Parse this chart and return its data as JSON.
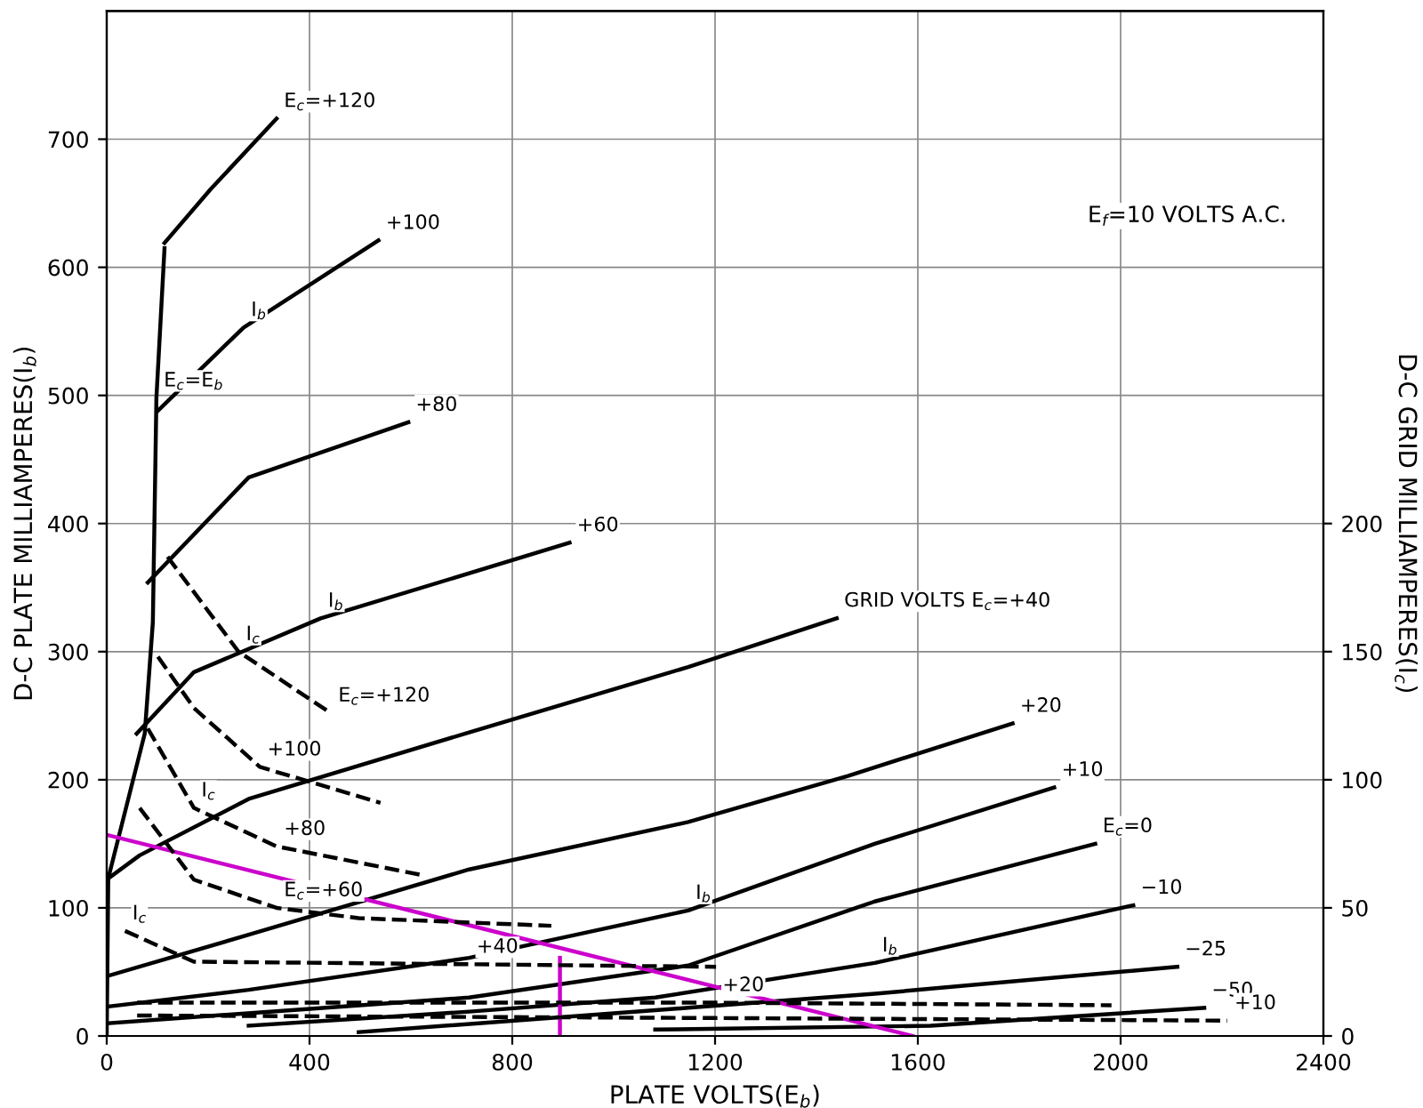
{
  "chart_data": {
    "type": "line",
    "xlabel": "PLATE VOLTS(E$_{b}$)",
    "ylabel": "D-C PLATE MILLIAMPERES(I$_{b}$)",
    "y2label": "D-C GRID MILLIAMPERES(I$_{c}$)",
    "xlim": [
      0,
      2400
    ],
    "xticks": [
      0,
      400,
      800,
      1200,
      1600,
      2000,
      2400
    ],
    "ylim": [
      0,
      800
    ],
    "yticks": [
      0,
      100,
      200,
      300,
      400,
      500,
      600,
      700
    ],
    "y2lim": [
      0,
      400
    ],
    "y2ticks": [
      0,
      50,
      100,
      150,
      200
    ],
    "grid": true,
    "marker": "none",
    "series": [
      {
        "color": "#000000",
        "line_style": "solid",
        "x": [
          0,
          3,
          75,
          91,
          98,
          114
        ],
        "values": [
          0,
          123,
          236,
          323,
          498,
          615
        ]
      },
      {
        "color": "#000000",
        "line_style": "solid",
        "x": [
          114,
          205,
          335
        ],
        "values": [
          619,
          661,
          716
        ]
      },
      {
        "color": "#000000",
        "line_style": "solid",
        "x": [
          101,
          270,
          536
        ],
        "values": [
          488,
          553,
          621
        ]
      },
      {
        "color": "#000000",
        "line_style": "solid",
        "x": [
          81,
          280,
          595
        ],
        "values": [
          354,
          436,
          479
        ]
      },
      {
        "color": "#000000",
        "line_style": "solid",
        "x": [
          59,
          172,
          422,
          913
        ],
        "values": [
          236,
          284,
          326,
          385
        ]
      },
      {
        "color": "#000000",
        "line_style": "solid",
        "x": [
          3,
          65,
          280,
          715,
          1147,
          1440
        ],
        "values": [
          123,
          141,
          185,
          237,
          288,
          326
        ]
      },
      {
        "color": "#000000",
        "line_style": "solid",
        "x": [
          3,
          280,
          715,
          1147,
          1462,
          1787
        ],
        "values": [
          47,
          79,
          130,
          167,
          203,
          244
        ]
      },
      {
        "color": "#000000",
        "line_style": "solid",
        "x": [
          3,
          280,
          715,
          1147,
          1515,
          1869
        ],
        "values": [
          23,
          36,
          61,
          98,
          150,
          194
        ]
      },
      {
        "color": "#000000",
        "line_style": "solid",
        "x": [
          3,
          715,
          1147,
          1515,
          1950
        ],
        "values": [
          10,
          30,
          55,
          105,
          150
        ]
      },
      {
        "color": "#000000",
        "line_style": "solid",
        "x": [
          280,
          715,
          1082,
          1515,
          2025
        ],
        "values": [
          8,
          19,
          30,
          57,
          102
        ]
      },
      {
        "color": "#000000",
        "line_style": "solid",
        "x": [
          497,
          1147,
          1515,
          2112
        ],
        "values": [
          3,
          22,
          33,
          54
        ]
      },
      {
        "color": "#000000",
        "line_style": "solid",
        "x": [
          1082,
          1625,
          2165
        ],
        "values": [
          5,
          8,
          22
        ]
      },
      {
        "color": "#000000",
        "line_style": "dashed",
        "axis": "y2",
        "x": [
          120,
          260,
          442
        ],
        "values": [
          187,
          150,
          126
        ]
      },
      {
        "color": "#000000",
        "line_style": "dashed",
        "axis": "y2",
        "x": [
          101,
          172,
          302,
          540
        ],
        "values": [
          148,
          128,
          105,
          91
        ]
      },
      {
        "color": "#000000",
        "line_style": "dashed",
        "axis": "y2",
        "x": [
          81,
          172,
          335,
          617
        ],
        "values": [
          120,
          89,
          74,
          63
        ]
      },
      {
        "color": "#000000",
        "line_style": "dashed",
        "axis": "y2",
        "x": [
          65,
          172,
          335,
          497,
          877
        ],
        "values": [
          89,
          61,
          50,
          46,
          43
        ]
      },
      {
        "color": "#000000",
        "line_style": "dashed",
        "axis": "y2",
        "x": [
          36,
          172,
          715,
          1202
        ],
        "values": [
          41,
          29,
          28,
          27
        ]
      },
      {
        "color": "#000000",
        "line_style": "dashed",
        "axis": "y2",
        "x": [
          60,
          1200,
          1982
        ],
        "values": [
          13,
          13,
          12
        ]
      },
      {
        "color": "#000000",
        "line_style": "dashed",
        "axis": "y2",
        "x": [
          60,
          1200,
          2210
        ],
        "values": [
          8,
          7,
          6
        ]
      },
      {
        "color": "#cc00cc",
        "line_style": "solid",
        "x": [
          0,
          1590
        ],
        "values": [
          157,
          0
        ]
      },
      {
        "color": "#cc00cc",
        "line_style": "solid",
        "x": [
          894,
          894
        ],
        "values": [
          61,
          0
        ]
      }
    ],
    "annotations": [
      "E$_{f}$=10 VOLTS A.C.",
      {
        "text": "E$_{c}$=E$_{b}$",
        "x": 98,
        "y": 498
      },
      {
        "text": "E$_{c}$=+120",
        "x": 335,
        "y": 716
      },
      {
        "text": "+100",
        "x": 536,
        "y": 621
      },
      {
        "text": "+80",
        "x": 595,
        "y": 479
      },
      {
        "text": "+60",
        "x": 913,
        "y": 385
      },
      {
        "text": "GRID VOLTS E$_{c}$=+40",
        "x": 1440,
        "y": 326
      },
      {
        "text": "+20",
        "x": 1787,
        "y": 244
      },
      {
        "text": "+10",
        "x": 1869,
        "y": 194
      },
      {
        "text": "E$_{c}$=0",
        "x": 1950,
        "y": 150
      },
      {
        "text": "−10",
        "x": 2025,
        "y": 102
      },
      {
        "text": "−25",
        "x": 2112,
        "y": 54
      },
      {
        "text": "−50",
        "x": 2165,
        "y": 22
      },
      {
        "text": "I$_{b}$",
        "x": 270,
        "y": 553
      },
      {
        "text": "I$_{b}$",
        "x": 422,
        "y": 326
      },
      {
        "text": "I$_{b}$",
        "x": 1147,
        "y": 98
      },
      {
        "text": "I$_{b}$",
        "x": 1515,
        "y": 57
      },
      {
        "text": "I$_{c}$",
        "x": 260,
        "y": 300
      },
      {
        "text": "I$_{c}$",
        "x": 172,
        "y": 178
      },
      {
        "text": "I$_{c}$",
        "x": 36,
        "y": 82
      },
      {
        "text": "E$_{c}$=+120",
        "x": 442,
        "y": 252
      },
      {
        "text": "+100",
        "x": 302,
        "y": 210
      },
      {
        "text": "+80",
        "x": 335,
        "y": 148
      },
      {
        "text": "E$_{c}$=+60",
        "x": 335,
        "y": 100
      },
      {
        "text": "+40",
        "x": 715,
        "y": 56
      },
      {
        "text": "+20",
        "x": 1200,
        "y": 26
      },
      {
        "text": "+10",
        "x": 2210,
        "y": 12
      }
    ]
  }
}
